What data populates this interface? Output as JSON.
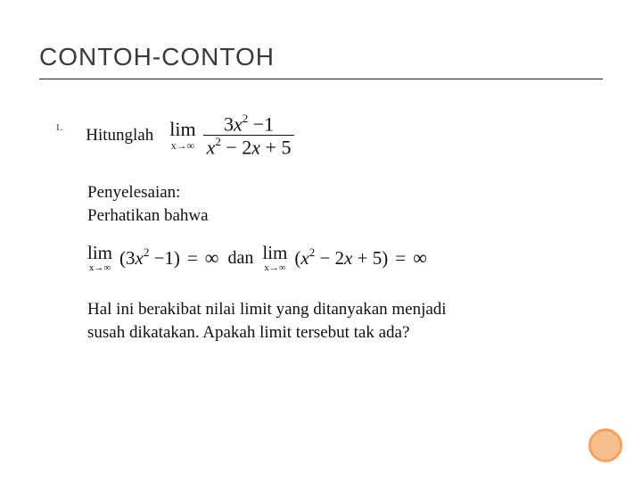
{
  "title": "CONTOH-CONTOH",
  "title_fontsize": "28px",
  "title_color": "#3a3a3a",
  "rule_color": "#222222",
  "list_number": "1.",
  "hitung_label": "Hitunglah",
  "hitung_fontsize": "19px",
  "limit1": {
    "lim_text": "lim",
    "lim_sub": "x→∞",
    "numerator_html": "3<i>x</i><span class=\"sup\">2</span> −1",
    "denominator_html": "<i>x</i><span class=\"sup\">2</span> − 2<i>x</i> + 5",
    "fontsize": "22px"
  },
  "penyelesaian_label": "Penyelesaian:",
  "perhatikan_label": "Perhatikan bahwa",
  "body_fontsize": "19px",
  "eq": {
    "lim_text": "lim",
    "lim_sub": "x→∞",
    "expr1_html": "(3<i>x</i><span class=\"sup\">2</span> −1)",
    "eq_text": "=",
    "inf_text": "∞",
    "dan_text": "dan",
    "expr2_html": "(<i>x</i><span class=\"sup\">2</span> − 2<i>x</i> + 5)"
  },
  "conclusion_line1": "Hal ini berakibat nilai limit yang ditanyakan menjadi",
  "conclusion_line2": "susah dikatakan. Apakah limit tersebut tak ada?",
  "circle": {
    "size": "38px",
    "fill": "#f9c08f",
    "border_color": "#f4a25f",
    "border_width": "3px"
  }
}
